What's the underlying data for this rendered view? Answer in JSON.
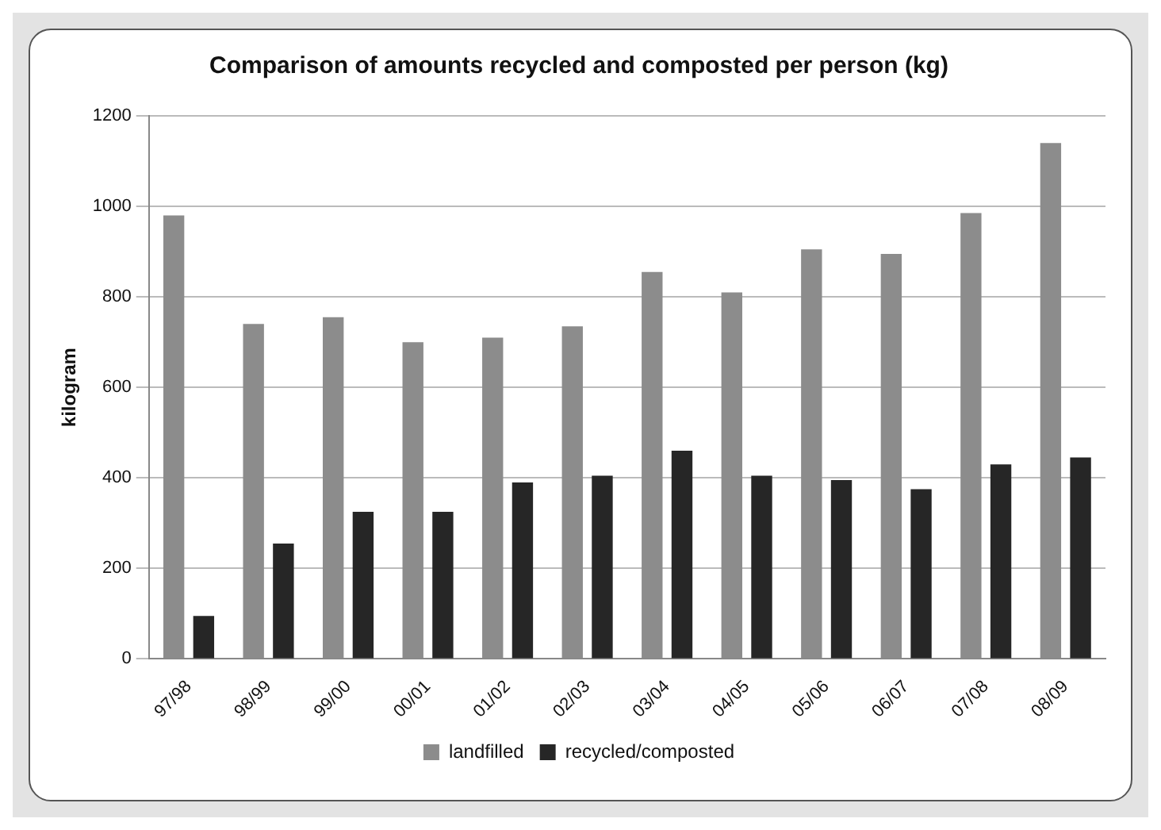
{
  "chart_data": {
    "type": "bar",
    "title": "Comparison of amounts recycled and composted per person (kg)",
    "ylabel": "kilogram",
    "categories": [
      "97/98",
      "98/99",
      "99/00",
      "00/01",
      "01/02",
      "02/03",
      "03/04",
      "04/05",
      "05/06",
      "06/07",
      "07/08",
      "08/09"
    ],
    "series": [
      {
        "name": "landfilled",
        "color": "#8c8c8c",
        "values": [
          980,
          740,
          755,
          700,
          710,
          735,
          855,
          810,
          905,
          895,
          985,
          1140
        ]
      },
      {
        "name": "recycled/composted",
        "color": "#262626",
        "values": [
          95,
          255,
          325,
          325,
          390,
          405,
          460,
          405,
          395,
          375,
          430,
          445
        ]
      }
    ],
    "ylim": [
      0,
      1200
    ],
    "yticks": [
      0,
      200,
      400,
      600,
      800,
      1000,
      1200
    ],
    "grid": "y",
    "legend": "bottom"
  }
}
